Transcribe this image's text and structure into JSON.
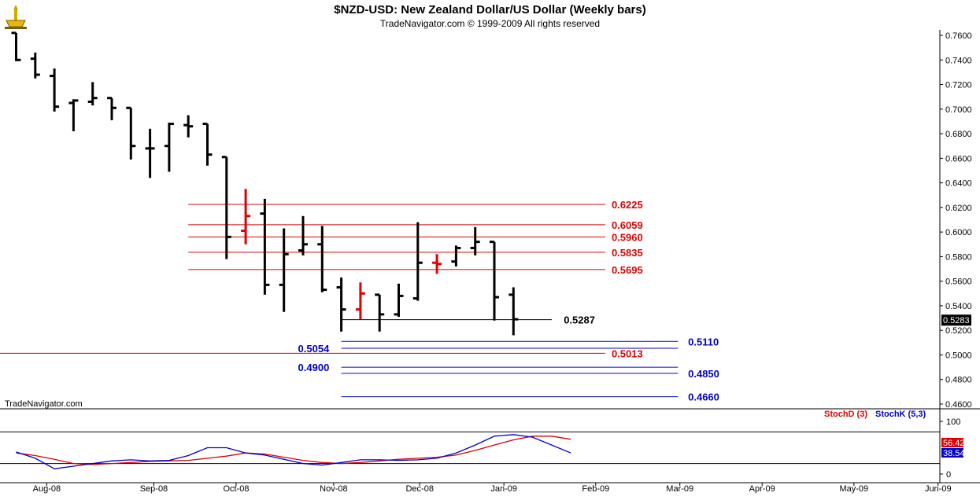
{
  "header": {
    "title": "$NZD-USD:  New Zealand Dollar/US Dollar  (Weekly bars)",
    "copyright": "TradeNavigator.com © 1999-2009 All rights reserved",
    "watermark": "TradeNavigator.com"
  },
  "colors": {
    "bar": "#000000",
    "highlight_bar": "#e00000",
    "red_level": "#e00000",
    "blue_level": "#0000cc",
    "stoch_d": "#e00000",
    "stoch_k": "#0000cc",
    "grid_dotted": "#808080"
  },
  "chart_data": [
    {
      "type": "ohlc",
      "ylim": [
        0.46,
        0.77
      ],
      "y_ticks": [
        "0.7600",
        "0.7400",
        "0.7200",
        "0.7000",
        "0.6800",
        "0.6600",
        "0.6400",
        "0.6200",
        "0.6000",
        "0.5800",
        "0.5600",
        "0.5400",
        "0.5200",
        "0.5000",
        "0.4800",
        "0.4600"
      ],
      "x_labels": [
        {
          "week": 1.6,
          "label": "Aug-08"
        },
        {
          "week": 7.2,
          "label": "Sep-08"
        },
        {
          "week": 11.5,
          "label": "Oct-08"
        },
        {
          "week": 16.6,
          "label": "Nov-08"
        },
        {
          "week": 21.1,
          "label": "Dec-08"
        },
        {
          "week": 25.5,
          "label": "Jan-09"
        },
        {
          "week": 30.3,
          "label": "Feb-09"
        },
        {
          "week": 34.7,
          "label": "Mar-09"
        },
        {
          "week": 39.0,
          "label": "Apr-09"
        },
        {
          "week": 43.8,
          "label": "May-09"
        },
        {
          "week": 48.2,
          "label": "Jun-09"
        }
      ],
      "bars": [
        {
          "o": 0.762,
          "h": 0.762,
          "l": 0.739,
          "c": 0.74
        },
        {
          "o": 0.741,
          "h": 0.746,
          "l": 0.725,
          "c": 0.728
        },
        {
          "o": 0.727,
          "h": 0.733,
          "l": 0.698,
          "c": 0.702
        },
        {
          "o": 0.705,
          "h": 0.708,
          "l": 0.682,
          "c": 0.707
        },
        {
          "o": 0.706,
          "h": 0.722,
          "l": 0.703,
          "c": 0.709
        },
        {
          "o": 0.709,
          "h": 0.709,
          "l": 0.691,
          "c": 0.701
        },
        {
          "o": 0.701,
          "h": 0.701,
          "l": 0.659,
          "c": 0.67
        },
        {
          "o": 0.668,
          "h": 0.684,
          "l": 0.644,
          "c": 0.668
        },
        {
          "o": 0.67,
          "h": 0.689,
          "l": 0.649,
          "c": 0.688
        },
        {
          "o": 0.687,
          "h": 0.695,
          "l": 0.677,
          "c": 0.686
        },
        {
          "o": 0.688,
          "h": 0.688,
          "l": 0.654,
          "c": 0.663
        },
        {
          "o": 0.661,
          "h": 0.661,
          "l": 0.578,
          "c": 0.596
        },
        {
          "o": 0.601,
          "h": 0.635,
          "l": 0.59,
          "c": 0.613,
          "highlight": true
        },
        {
          "o": 0.615,
          "h": 0.627,
          "l": 0.549,
          "c": 0.557
        },
        {
          "o": 0.557,
          "h": 0.603,
          "l": 0.535,
          "c": 0.582
        },
        {
          "o": 0.585,
          "h": 0.613,
          "l": 0.581,
          "c": 0.59
        },
        {
          "o": 0.59,
          "h": 0.605,
          "l": 0.551,
          "c": 0.553
        },
        {
          "o": 0.555,
          "h": 0.563,
          "l": 0.519,
          "c": 0.537
        },
        {
          "o": 0.537,
          "h": 0.559,
          "l": 0.529,
          "c": 0.55,
          "highlight": true
        },
        {
          "o": 0.549,
          "h": 0.549,
          "l": 0.519,
          "c": 0.533
        },
        {
          "o": 0.533,
          "h": 0.558,
          "l": 0.531,
          "c": 0.548
        },
        {
          "o": 0.546,
          "h": 0.608,
          "l": 0.544,
          "c": 0.575
        },
        {
          "o": 0.575,
          "h": 0.582,
          "l": 0.566,
          "c": 0.574,
          "highlight": true
        },
        {
          "o": 0.576,
          "h": 0.589,
          "l": 0.572,
          "c": 0.587
        },
        {
          "o": 0.587,
          "h": 0.604,
          "l": 0.581,
          "c": 0.592
        },
        {
          "o": 0.592,
          "h": 0.592,
          "l": 0.528,
          "c": 0.547
        },
        {
          "o": 0.549,
          "h": 0.555,
          "l": 0.516,
          "c": 0.529
        }
      ],
      "current_price": "0.5283",
      "levels": [
        {
          "value": 0.6225,
          "label": "0.6225",
          "color": "red",
          "from_week": 9.0,
          "to_week": 30.8,
          "label_week": 30.8,
          "label_side": "right"
        },
        {
          "value": 0.6059,
          "label": "0.6059",
          "color": "red",
          "from_week": 9.0,
          "to_week": 30.8,
          "label_week": 30.8,
          "label_side": "right"
        },
        {
          "value": 0.596,
          "label": "0.5960",
          "color": "red",
          "from_week": 9.0,
          "to_week": 30.8,
          "label_week": 30.8,
          "label_side": "right"
        },
        {
          "value": 0.5835,
          "label": "0.5835",
          "color": "red",
          "from_week": 9.0,
          "to_week": 30.8,
          "label_week": 30.8,
          "label_side": "right"
        },
        {
          "value": 0.5695,
          "label": "0.5695",
          "color": "red",
          "from_week": 9.0,
          "to_week": 30.8,
          "label_week": 30.8,
          "label_side": "right"
        },
        {
          "value": 0.5287,
          "label": "0.5287",
          "color": "black",
          "from_week": 17.0,
          "to_week": 28.0,
          "label_week": 28.3,
          "label_side": "right"
        },
        {
          "value": 0.511,
          "label": "0.5110",
          "color": "blue",
          "from_week": 17.0,
          "to_week": 34.6,
          "label_week": 34.8,
          "label_side": "right"
        },
        {
          "value": 0.5054,
          "label": "0.5054",
          "color": "blue",
          "from_week": 17.0,
          "to_week": 34.6,
          "label_week": 16.7,
          "label_side": "left"
        },
        {
          "value": 0.5013,
          "label": "0.5013",
          "color": "red",
          "from_week": -0.7,
          "to_week": 30.8,
          "label_week": 30.8,
          "label_side": "right"
        },
        {
          "value": 0.49,
          "label": "0.4900",
          "color": "blue",
          "from_week": 17.0,
          "to_week": 34.6,
          "label_week": 16.7,
          "label_side": "left"
        },
        {
          "value": 0.485,
          "label": "0.4850",
          "color": "blue",
          "from_week": 17.0,
          "to_week": 34.6,
          "label_week": 34.8,
          "label_side": "right"
        },
        {
          "value": 0.466,
          "label": "0.4660",
          "color": "blue",
          "from_week": 17.0,
          "to_week": 34.6,
          "label_week": 34.8,
          "label_side": "right"
        }
      ]
    },
    {
      "type": "line",
      "title": "",
      "ylim": [
        -5,
        105
      ],
      "y_ticks": [
        "100",
        "0"
      ],
      "ref_levels": [
        80,
        20
      ],
      "legend": [
        "StochD (3)",
        "StochK (5,3)"
      ],
      "series": [
        {
          "name": "StochD (3)",
          "color": "red",
          "current": "56.42",
          "values": [
            40,
            35,
            28,
            20,
            18,
            20,
            22,
            24,
            25,
            26,
            30,
            34,
            40,
            38,
            32,
            26,
            22,
            20,
            22,
            25,
            28,
            30,
            32,
            36,
            45,
            55,
            65,
            72,
            72,
            66
          ]
        },
        {
          "name": "StochK (5,3)",
          "color": "blue",
          "current": "38.54",
          "values": [
            42,
            30,
            10,
            15,
            20,
            25,
            27,
            25,
            26,
            35,
            50,
            50,
            40,
            36,
            28,
            20,
            17,
            22,
            27,
            27,
            26,
            27,
            30,
            40,
            55,
            72,
            75,
            70,
            55,
            40
          ]
        }
      ]
    }
  ]
}
